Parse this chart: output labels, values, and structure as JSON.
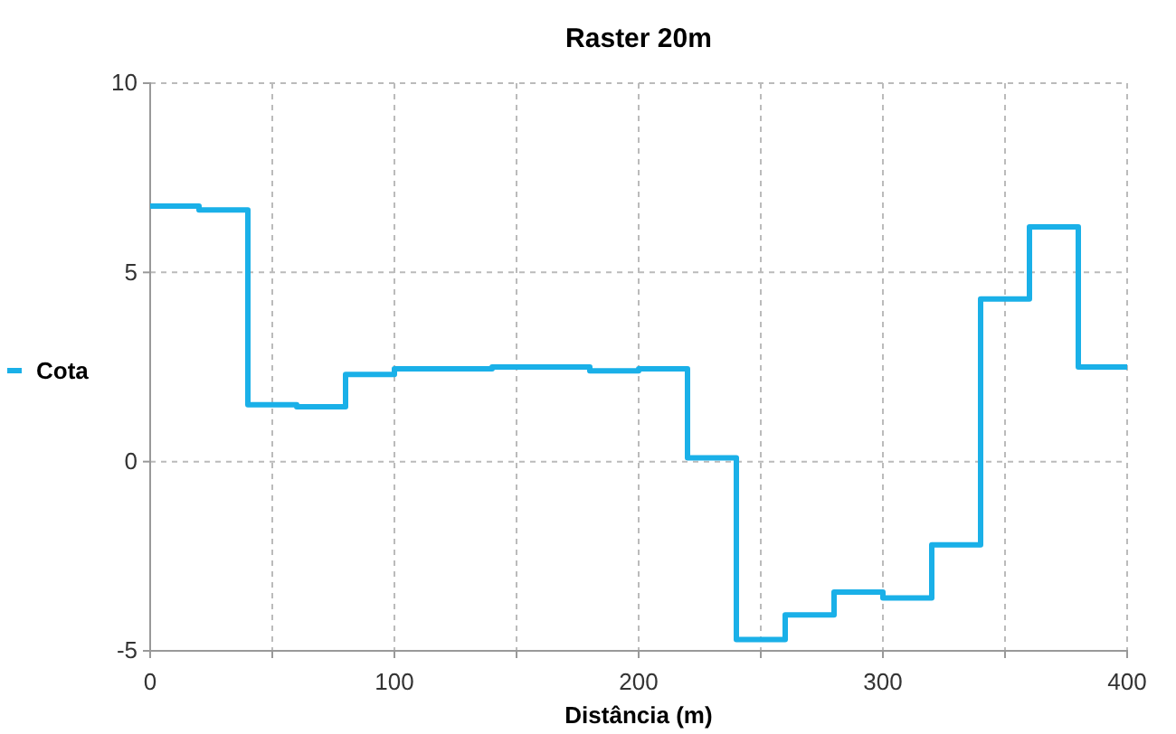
{
  "chart_data": {
    "type": "step",
    "title": "Raster 20m",
    "xlabel": "Distância (m)",
    "x": [
      0,
      20,
      40,
      60,
      80,
      100,
      120,
      140,
      160,
      180,
      200,
      220,
      240,
      260,
      280,
      300,
      320,
      340,
      360,
      380,
      400
    ],
    "series": [
      {
        "name": "Cota",
        "color": "#1ab0e8",
        "values": [
          6.75,
          6.65,
          1.5,
          1.45,
          2.3,
          2.45,
          2.45,
          2.5,
          2.5,
          2.4,
          2.45,
          0.1,
          -4.7,
          -4.05,
          -3.45,
          -3.6,
          -2.2,
          4.3,
          6.2,
          2.5,
          2.5
        ]
      }
    ],
    "xlim": [
      0,
      400
    ],
    "ylim": [
      -5,
      10
    ],
    "xticks": [
      0,
      {
        "value": 50,
        "label": null
      },
      100,
      {
        "value": 150,
        "label": null
      },
      200,
      {
        "value": 250,
        "label": null
      },
      300,
      {
        "value": 350,
        "label": null
      },
      400
    ],
    "yticks": [
      -5,
      0,
      5,
      10
    ],
    "grid": true,
    "legend": "left",
    "marker": "none",
    "line_style": "solid"
  }
}
